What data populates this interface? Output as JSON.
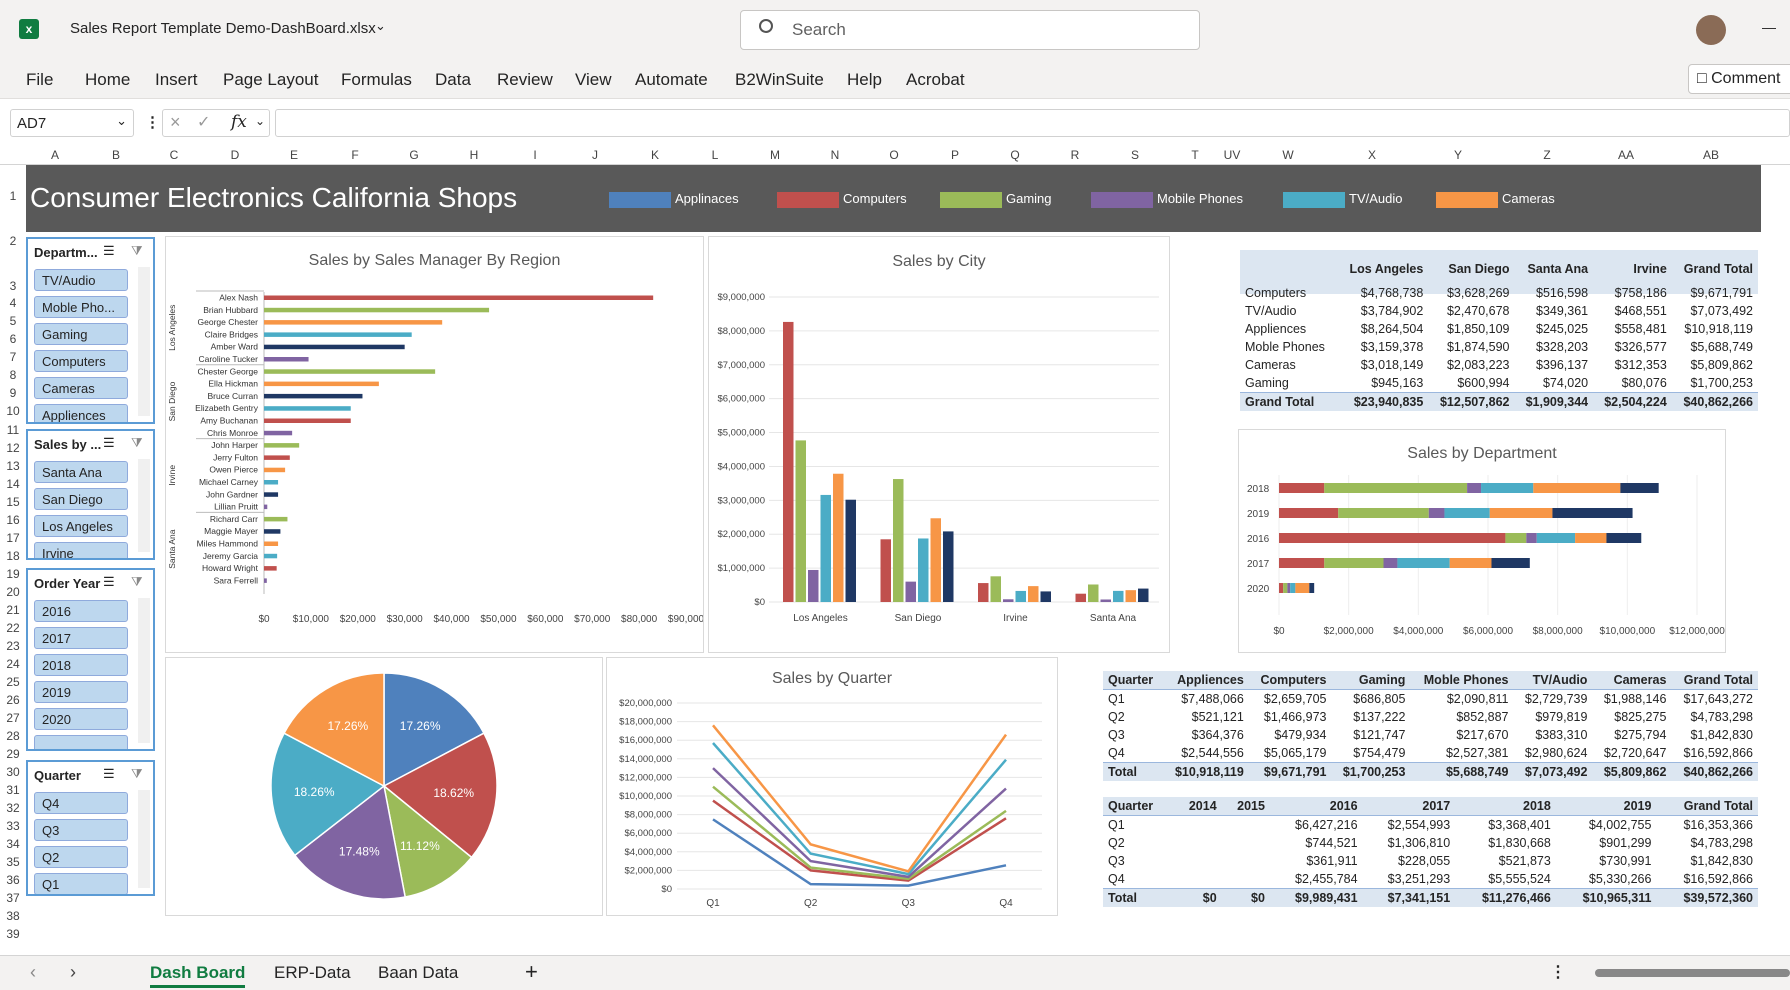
{
  "window": {
    "file_name": "Sales Report Template Demo-DashBoard.xlsx",
    "search_placeholder": "Search",
    "comments_label": "Comment"
  },
  "menu": [
    "File",
    "Home",
    "Insert",
    "Page Layout",
    "Formulas",
    "Data",
    "Review",
    "View",
    "Automate",
    "B2WinSuite",
    "Help",
    "Acrobat"
  ],
  "formula_bar": {
    "name_box": "AD7",
    "fx": "fx"
  },
  "columns": [
    "A",
    "B",
    "C",
    "D",
    "E",
    "F",
    "G",
    "H",
    "I",
    "J",
    "K",
    "L",
    "M",
    "N",
    "O",
    "P",
    "Q",
    "R",
    "S",
    "T",
    "UV",
    "W",
    "X",
    "Y",
    "Z",
    "AA",
    "AB"
  ],
  "rows": [
    "1",
    "2",
    "3",
    "4",
    "5",
    "6",
    "7",
    "8",
    "9",
    "10",
    "11",
    "12",
    "13",
    "14",
    "15",
    "16",
    "17",
    "18",
    "19",
    "20",
    "21",
    "22",
    "23",
    "24",
    "25",
    "26",
    "27",
    "28",
    "29",
    "30",
    "31",
    "32",
    "33",
    "34",
    "35",
    "36",
    "37",
    "38",
    "39"
  ],
  "dashboard": {
    "title": "Consumer Electronics California Shops",
    "legend": [
      {
        "label": "Applinaces",
        "color": "#4f81bd"
      },
      {
        "label": "Computers",
        "color": "#c0504d"
      },
      {
        "label": "Gaming",
        "color": "#9bbb59"
      },
      {
        "label": "Mobile Phones",
        "color": "#8064a2"
      },
      {
        "label": "TV/Audio",
        "color": "#4bacc6"
      },
      {
        "label": "Cameras",
        "color": "#f79646"
      }
    ]
  },
  "slicers": [
    {
      "header": "Departm...",
      "items": [
        "TV/Audio",
        "Moble Pho...",
        "Gaming",
        "Computers",
        "Cameras",
        "Appliences"
      ]
    },
    {
      "header": "Sales by ...",
      "items": [
        "Santa Ana",
        "San Diego",
        "Los Angeles",
        "Irvine"
      ]
    },
    {
      "header": "Order Year",
      "items": [
        "2016",
        "2017",
        "2018",
        "2019",
        "2020",
        ""
      ]
    },
    {
      "header": "Quarter",
      "items": [
        "Q4",
        "Q3",
        "Q2",
        "Q1"
      ]
    }
  ],
  "city_table": {
    "headers": [
      "",
      "Los Angeles",
      "San Diego",
      "Santa Ana",
      "Irvine",
      "Grand Total"
    ],
    "rows": [
      [
        "Computers",
        "$4,768,738",
        "$3,628,269",
        "$516,598",
        "$758,186",
        "$9,671,791"
      ],
      [
        "TV/Audio",
        "$3,784,902",
        "$2,470,678",
        "$349,361",
        "$468,551",
        "$7,073,492"
      ],
      [
        "Appliences",
        "$8,264,504",
        "$1,850,109",
        "$245,025",
        "$558,481",
        "$10,918,119"
      ],
      [
        "Moble Phones",
        "$3,159,378",
        "$1,874,590",
        "$328,203",
        "$326,577",
        "$5,688,749"
      ],
      [
        "Cameras",
        "$3,018,149",
        "$2,083,223",
        "$396,137",
        "$312,353",
        "$5,809,862"
      ],
      [
        "Gaming",
        "$945,163",
        "$600,994",
        "$74,020",
        "$80,076",
        "$1,700,253"
      ]
    ],
    "total": [
      "Grand Total",
      "$23,940,835",
      "$12,507,862",
      "$1,909,344",
      "$2,504,224",
      "$40,862,266"
    ]
  },
  "quarter_table": {
    "headers": [
      "Quarter",
      "Appliences",
      "Computers",
      "Gaming",
      "Moble Phones",
      "TV/Audio",
      "Cameras",
      "Grand Total"
    ],
    "rows": [
      [
        "Q1",
        "$7,488,066",
        "$2,659,705",
        "$686,805",
        "$2,090,811",
        "$2,729,739",
        "$1,988,146",
        "$17,643,272"
      ],
      [
        "Q2",
        "$521,121",
        "$1,466,973",
        "$137,222",
        "$852,887",
        "$979,819",
        "$825,275",
        "$4,783,298"
      ],
      [
        "Q3",
        "$364,376",
        "$479,934",
        "$121,747",
        "$217,670",
        "$383,310",
        "$275,794",
        "$1,842,830"
      ],
      [
        "Q4",
        "$2,544,556",
        "$5,065,179",
        "$754,479",
        "$2,527,381",
        "$2,980,624",
        "$2,720,647",
        "$16,592,866"
      ]
    ],
    "total": [
      "Total",
      "$10,918,119",
      "$9,671,791",
      "$1,700,253",
      "$5,688,749",
      "$7,073,492",
      "$5,809,862",
      "$40,862,266"
    ]
  },
  "year_table": {
    "headers": [
      "Quarter",
      "2014",
      "2015",
      "2016",
      "2017",
      "2018",
      "2019",
      "Grand Total"
    ],
    "rows": [
      [
        "Q1",
        "",
        "",
        "$6,427,216",
        "$2,554,993",
        "$3,368,401",
        "$4,002,755",
        "$16,353,366"
      ],
      [
        "Q2",
        "",
        "",
        "$744,521",
        "$1,306,810",
        "$1,830,668",
        "$901,299",
        "$4,783,298"
      ],
      [
        "Q3",
        "",
        "",
        "$361,911",
        "$228,055",
        "$521,873",
        "$730,991",
        "$1,842,830"
      ],
      [
        "Q4",
        "",
        "",
        "$2,455,784",
        "$3,251,293",
        "$5,555,524",
        "$5,330,266",
        "$16,592,866"
      ]
    ],
    "total": [
      "Total",
      "$0",
      "$0",
      "$9,989,431",
      "$7,341,151",
      "$11,276,466",
      "$10,965,311",
      "$39,572,360"
    ]
  },
  "sheet_tabs": [
    "Dash Board",
    "ERP-Data",
    "Baan Data"
  ],
  "chart_data": [
    {
      "type": "bar",
      "title": "Sales by Sales Manager By Region",
      "orientation": "horizontal",
      "groups": [
        "Los Angeles",
        "San Diego",
        "Irvine",
        "Santa Ana"
      ],
      "categories": [
        "Alex Nash",
        "Brian Hubbard",
        "George Chester",
        "Claire Bridges",
        "Amber Ward",
        "Caroline Tucker",
        "Chester George",
        "Ella Hickman",
        "Bruce Curran",
        "Elizabeth Gentry",
        "Amy Buchanan",
        "Chris Monroe",
        "John Harper",
        "Jerry Fulton",
        "Owen Pierce",
        "Michael Carney",
        "John Gardner",
        "Lillian Pruitt",
        "Richard Carr",
        "Maggie Mayer",
        "Miles Hammond",
        "Jeremy Garcia",
        "Howard Wright",
        "Sara Ferrell"
      ],
      "group_of": [
        0,
        0,
        0,
        0,
        0,
        0,
        1,
        1,
        1,
        1,
        1,
        1,
        2,
        2,
        2,
        2,
        2,
        2,
        3,
        3,
        3,
        3,
        3,
        3
      ],
      "values": [
        83000,
        48000,
        38000,
        31500,
        30000,
        9500,
        36500,
        24500,
        21000,
        18500,
        18500,
        6000,
        7500,
        5500,
        4500,
        3000,
        3000,
        700,
        5000,
        3500,
        3000,
        2800,
        2700,
        600
      ],
      "colors": [
        "#c0504d",
        "#9bbb59",
        "#f79646",
        "#4bacc6",
        "#1f3864",
        "#8064a2",
        "#9bbb59",
        "#f79646",
        "#1f3864",
        "#4bacc6",
        "#c0504d",
        "#8064a2",
        "#9bbb59",
        "#c0504d",
        "#f79646",
        "#4bacc6",
        "#1f3864",
        "#8064a2",
        "#9bbb59",
        "#1f3864",
        "#f79646",
        "#4bacc6",
        "#c0504d",
        "#8064a2"
      ],
      "xticks": [
        "$0",
        "$10,000",
        "$20,000",
        "$30,000",
        "$40,000",
        "$50,000",
        "$60,000",
        "$70,000",
        "$80,000",
        "$90,000"
      ],
      "xlim": [
        0,
        90000
      ]
    },
    {
      "type": "bar",
      "title": "Sales by City",
      "categories": [
        "Los Angeles",
        "San Diego",
        "Irvine",
        "Santa Ana"
      ],
      "series": [
        {
          "values": [
            8264504,
            1850109,
            558481,
            245025
          ],
          "color": "#c0504d"
        },
        {
          "values": [
            4768738,
            3628269,
            758186,
            516598
          ],
          "color": "#9bbb59"
        },
        {
          "values": [
            945163,
            600994,
            80076,
            74020
          ],
          "color": "#8064a2"
        },
        {
          "values": [
            3159378,
            1874590,
            326577,
            328203
          ],
          "color": "#4bacc6"
        },
        {
          "values": [
            3784902,
            2470678,
            468551,
            349361
          ],
          "color": "#f79646"
        },
        {
          "values": [
            3018149,
            2083223,
            312353,
            396137
          ],
          "color": "#1f3864"
        }
      ],
      "yticks": [
        "$0",
        "$1,000,000",
        "$2,000,000",
        "$3,000,000",
        "$4,000,000",
        "$5,000,000",
        "$6,000,000",
        "$7,000,000",
        "$8,000,000",
        "$9,000,000"
      ],
      "ylim": [
        0,
        9000000
      ]
    },
    {
      "type": "bar",
      "title": "Sales by Department",
      "orientation": "horizontal",
      "stacked": true,
      "categories": [
        "2018",
        "2019",
        "2016",
        "2017",
        "2020"
      ],
      "series": [
        {
          "values": [
            1300000,
            1700000,
            6500000,
            1300000,
            120000
          ],
          "color": "#c0504d"
        },
        {
          "values": [
            4100000,
            2600000,
            600000,
            1700000,
            120000
          ],
          "color": "#9bbb59"
        },
        {
          "values": [
            400000,
            450000,
            300000,
            400000,
            80000
          ],
          "color": "#8064a2"
        },
        {
          "values": [
            1500000,
            1300000,
            1100000,
            1500000,
            150000
          ],
          "color": "#4bacc6"
        },
        {
          "values": [
            2500000,
            1800000,
            900000,
            1200000,
            400000
          ],
          "color": "#f79646"
        },
        {
          "values": [
            1100000,
            2300000,
            1000000,
            1100000,
            140000
          ],
          "color": "#1f3864"
        }
      ],
      "xticks": [
        "$0",
        "$2,000,000",
        "$4,000,000",
        "$6,000,000",
        "$8,000,000",
        "$10,000,000",
        "$12,000,000"
      ],
      "xlim": [
        0,
        12000000
      ]
    },
    {
      "type": "pie",
      "labels": [
        "17.26%",
        "18.62%",
        "11.12%",
        "17.48%",
        "18.26%",
        "17.26%"
      ],
      "values": [
        17.26,
        18.62,
        11.12,
        17.48,
        18.26,
        17.26
      ],
      "colors": [
        "#4f81bd",
        "#c0504d",
        "#9bbb59",
        "#8064a2",
        "#4bacc6",
        "#f79646"
      ]
    },
    {
      "type": "line",
      "title": "Sales by Quarter",
      "x": [
        "Q1",
        "Q2",
        "Q3",
        "Q4"
      ],
      "series": [
        {
          "values": [
            7488066,
            521121,
            364376,
            2544556
          ],
          "color": "#4f81bd"
        },
        {
          "values": [
            9500000,
            2000000,
            900000,
            7600000
          ],
          "color": "#c0504d"
        },
        {
          "values": [
            11000000,
            2300000,
            1100000,
            8400000
          ],
          "color": "#9bbb59"
        },
        {
          "values": [
            13000000,
            3000000,
            1300000,
            10800000
          ],
          "color": "#8064a2"
        },
        {
          "values": [
            15700000,
            3800000,
            1600000,
            13900000
          ],
          "color": "#4bacc6"
        },
        {
          "values": [
            17600000,
            4800000,
            1900000,
            16600000
          ],
          "color": "#f79646"
        }
      ],
      "yticks": [
        "$0",
        "$2,000,000",
        "$4,000,000",
        "$6,000,000",
        "$8,000,000",
        "$10,000,000",
        "$12,000,000",
        "$14,000,000",
        "$16,000,000",
        "$18,000,000",
        "$20,000,000"
      ],
      "ylim": [
        0,
        20000000
      ]
    }
  ]
}
